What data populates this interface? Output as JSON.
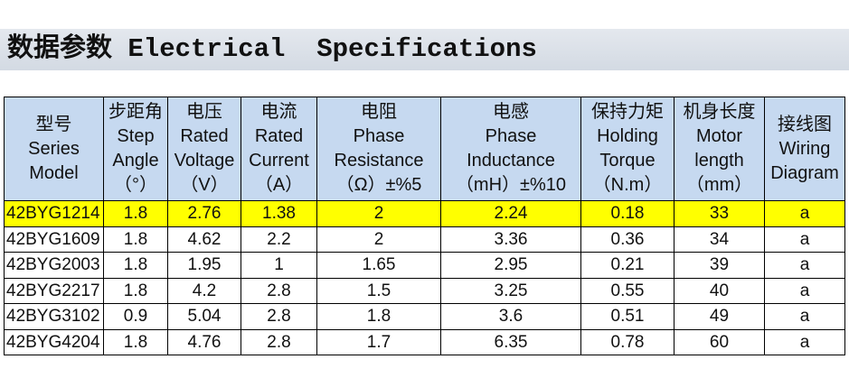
{
  "header": {
    "title": "数据参数 Electrical  Specifications"
  },
  "table": {
    "columns": [
      [
        "型号",
        "Series",
        "Model"
      ],
      [
        "步距角",
        "Step",
        "Angle",
        "（°）"
      ],
      [
        "电压",
        "Rated",
        "Voltage",
        "（V）"
      ],
      [
        "电流",
        "Rated",
        "Current",
        "（A）"
      ],
      [
        "电阻",
        "Phase",
        "Resistance",
        "（Ω）±%5"
      ],
      [
        "电感",
        "Phase",
        "Inductance",
        "（mH）±%10"
      ],
      [
        "保持力矩",
        "Holding",
        "Torque",
        "（N.m）"
      ],
      [
        "机身长度",
        "Motor",
        "length",
        "（mm）"
      ],
      [
        "接线图",
        "Wiring",
        "Diagram"
      ]
    ],
    "rows": [
      [
        "42BYG1214",
        1.8,
        2.76,
        1.38,
        2,
        2.24,
        0.18,
        33,
        "a"
      ],
      [
        "42BYG1609",
        1.8,
        4.62,
        2.2,
        2,
        3.36,
        0.36,
        34,
        "a"
      ],
      [
        "42BYG2003",
        1.8,
        1.95,
        1,
        1.65,
        2.95,
        0.21,
        39,
        "a"
      ],
      [
        "42BYG2217",
        1.8,
        4.2,
        2.8,
        1.5,
        3.25,
        0.55,
        40,
        "a"
      ],
      [
        "42BYG3102",
        0.9,
        5.04,
        2.8,
        1.8,
        3.6,
        0.51,
        49,
        "a"
      ],
      [
        "42BYG4204",
        1.8,
        4.76,
        2.8,
        1.7,
        6.35,
        0.78,
        60,
        "a"
      ]
    ],
    "highlight": {
      "row": 0,
      "color": "#ffff00"
    }
  }
}
